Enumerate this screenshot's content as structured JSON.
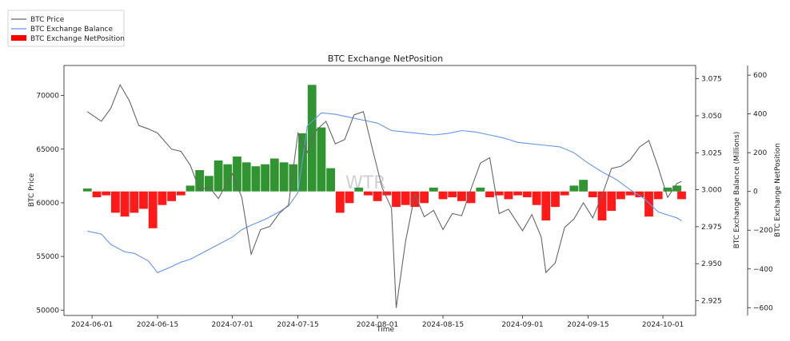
{
  "chart_data": {
    "type": "line",
    "title": "BTC Exchange NetPosition",
    "xlabel": "Time",
    "ylabel_left": "BTC Price",
    "ylabel_right1": "BTC Exchange Balance (Millions)",
    "ylabel_right2": "BTC Exchange NetPosition",
    "watermark": "WTR",
    "x_range": [
      "2024-05-26",
      "2024-10-08"
    ],
    "x_ticks": [
      "2024-06-01",
      "2024-06-15",
      "2024-07-01",
      "2024-07-15",
      "2024-08-01",
      "2024-08-15",
      "2024-09-01",
      "2024-09-15",
      "2024-10-01"
    ],
    "y_left_range": [
      49500,
      72800
    ],
    "y_left_ticks": [
      50000,
      55000,
      60000,
      65000,
      70000
    ],
    "y_right1_range": [
      2.915,
      3.084
    ],
    "y_right1_ticks": [
      2.925,
      2.95,
      2.975,
      3.0,
      3.025,
      3.05,
      3.075
    ],
    "y_right2_range": [
      -640,
      650
    ],
    "y_right2_ticks": [
      -600,
      -400,
      -200,
      0,
      200,
      400,
      600
    ],
    "legend": {
      "position": "top-left-outside",
      "entries": [
        "BTC Price",
        "BTC Exchange Balance",
        "BTC Exchange NetPosition"
      ]
    },
    "colors": {
      "price": "#666666",
      "balance": "#6495ed",
      "positive": "#1a8a1a",
      "negative": "#ff0000"
    },
    "series": [
      {
        "name": "BTC Price",
        "axis": "left",
        "x": [
          "2024-05-31",
          "2024-06-03",
          "2024-06-05",
          "2024-06-07",
          "2024-06-09",
          "2024-06-11",
          "2024-06-13",
          "2024-06-15",
          "2024-06-18",
          "2024-06-20",
          "2024-06-22",
          "2024-06-24",
          "2024-06-26",
          "2024-06-28",
          "2024-07-01",
          "2024-07-03",
          "2024-07-05",
          "2024-07-07",
          "2024-07-09",
          "2024-07-11",
          "2024-07-13",
          "2024-07-15",
          "2024-07-17",
          "2024-07-19",
          "2024-07-21",
          "2024-07-23",
          "2024-07-25",
          "2024-07-27",
          "2024-07-29",
          "2024-07-31",
          "2024-08-02",
          "2024-08-04",
          "2024-08-05",
          "2024-08-07",
          "2024-08-09",
          "2024-08-11",
          "2024-08-13",
          "2024-08-15",
          "2024-08-17",
          "2024-08-19",
          "2024-08-21",
          "2024-08-23",
          "2024-08-25",
          "2024-08-27",
          "2024-08-29",
          "2024-09-01",
          "2024-09-03",
          "2024-09-05",
          "2024-09-06",
          "2024-09-08",
          "2024-09-10",
          "2024-09-12",
          "2024-09-14",
          "2024-09-16",
          "2024-09-18",
          "2024-09-20",
          "2024-09-22",
          "2024-09-24",
          "2024-09-26",
          "2024-09-28",
          "2024-09-30",
          "2024-10-02",
          "2024-10-04",
          "2024-10-05"
        ],
        "values": [
          68500,
          67600,
          68800,
          71000,
          69500,
          67200,
          66900,
          66500,
          65000,
          64800,
          63500,
          61200,
          61500,
          60400,
          62700,
          60500,
          55200,
          57500,
          57800,
          59000,
          59800,
          66500,
          64700,
          66800,
          67600,
          65500,
          65900,
          68200,
          68500,
          64900,
          61400,
          59500,
          50200,
          56400,
          60800,
          58700,
          59300,
          57500,
          59000,
          58800,
          61300,
          63700,
          64200,
          59000,
          59400,
          57400,
          58900,
          56800,
          53500,
          54400,
          57700,
          58500,
          60000,
          58600,
          60700,
          63200,
          63400,
          64000,
          65200,
          65800,
          63300,
          60500,
          61800,
          62000
        ]
      },
      {
        "name": "BTC Exchange Balance",
        "axis": "right1",
        "x": [
          "2024-05-31",
          "2024-06-03",
          "2024-06-05",
          "2024-06-08",
          "2024-06-10",
          "2024-06-13",
          "2024-06-15",
          "2024-06-18",
          "2024-06-20",
          "2024-06-22",
          "2024-06-25",
          "2024-06-28",
          "2024-07-01",
          "2024-07-03",
          "2024-07-05",
          "2024-07-08",
          "2024-07-11",
          "2024-07-13",
          "2024-07-15",
          "2024-07-17",
          "2024-07-20",
          "2024-07-23",
          "2024-07-26",
          "2024-07-29",
          "2024-08-01",
          "2024-08-04",
          "2024-08-07",
          "2024-08-10",
          "2024-08-13",
          "2024-08-16",
          "2024-08-19",
          "2024-08-22",
          "2024-08-25",
          "2024-08-28",
          "2024-08-31",
          "2024-09-03",
          "2024-09-06",
          "2024-09-09",
          "2024-09-12",
          "2024-09-15",
          "2024-09-18",
          "2024-09-21",
          "2024-09-24",
          "2024-09-27",
          "2024-09-30",
          "2024-10-02",
          "2024-10-04",
          "2024-10-05"
        ],
        "values": [
          2.972,
          2.97,
          2.963,
          2.958,
          2.957,
          2.952,
          2.944,
          2.948,
          2.951,
          2.953,
          2.958,
          2.963,
          2.968,
          2.973,
          2.976,
          2.98,
          2.985,
          2.989,
          2.998,
          3.043,
          3.052,
          3.051,
          3.049,
          3.047,
          3.045,
          3.04,
          3.039,
          3.038,
          3.037,
          3.038,
          3.04,
          3.039,
          3.037,
          3.035,
          3.032,
          3.031,
          3.03,
          3.029,
          3.025,
          3.018,
          3.012,
          3.007,
          3.0,
          2.994,
          2.985,
          2.983,
          2.981,
          2.979
        ]
      },
      {
        "name": "BTC Exchange NetPosition",
        "axis": "right2",
        "type": "bar",
        "x": [
          "2024-05-31",
          "2024-06-02",
          "2024-06-04",
          "2024-06-06",
          "2024-06-08",
          "2024-06-10",
          "2024-06-12",
          "2024-06-14",
          "2024-06-16",
          "2024-06-18",
          "2024-06-20",
          "2024-06-22",
          "2024-06-24",
          "2024-06-26",
          "2024-06-28",
          "2024-06-30",
          "2024-07-02",
          "2024-07-04",
          "2024-07-06",
          "2024-07-08",
          "2024-07-10",
          "2024-07-12",
          "2024-07-14",
          "2024-07-16",
          "2024-07-18",
          "2024-07-20",
          "2024-07-22",
          "2024-07-24",
          "2024-07-26",
          "2024-07-28",
          "2024-07-30",
          "2024-08-01",
          "2024-08-03",
          "2024-08-05",
          "2024-08-07",
          "2024-08-09",
          "2024-08-11",
          "2024-08-13",
          "2024-08-15",
          "2024-08-17",
          "2024-08-19",
          "2024-08-21",
          "2024-08-23",
          "2024-08-25",
          "2024-08-27",
          "2024-08-29",
          "2024-08-31",
          "2024-09-02",
          "2024-09-04",
          "2024-09-06",
          "2024-09-08",
          "2024-09-10",
          "2024-09-12",
          "2024-09-14",
          "2024-09-16",
          "2024-09-18",
          "2024-09-20",
          "2024-09-22",
          "2024-09-24",
          "2024-09-26",
          "2024-09-28",
          "2024-09-30",
          "2024-10-02",
          "2024-10-04",
          "2024-10-05"
        ],
        "values": [
          15,
          -30,
          -20,
          -110,
          -130,
          -110,
          -90,
          -190,
          -70,
          -50,
          -20,
          30,
          110,
          80,
          160,
          140,
          180,
          150,
          130,
          140,
          170,
          150,
          140,
          300,
          550,
          330,
          120,
          -110,
          -60,
          20,
          -20,
          -50,
          -20,
          -80,
          -70,
          -80,
          -60,
          20,
          -40,
          -30,
          -50,
          -60,
          20,
          -30,
          -20,
          -40,
          -20,
          -30,
          -70,
          -150,
          -80,
          -20,
          30,
          60,
          -30,
          -150,
          -100,
          -40,
          -20,
          -30,
          -130,
          -40,
          20,
          30,
          -40
        ]
      }
    ]
  }
}
